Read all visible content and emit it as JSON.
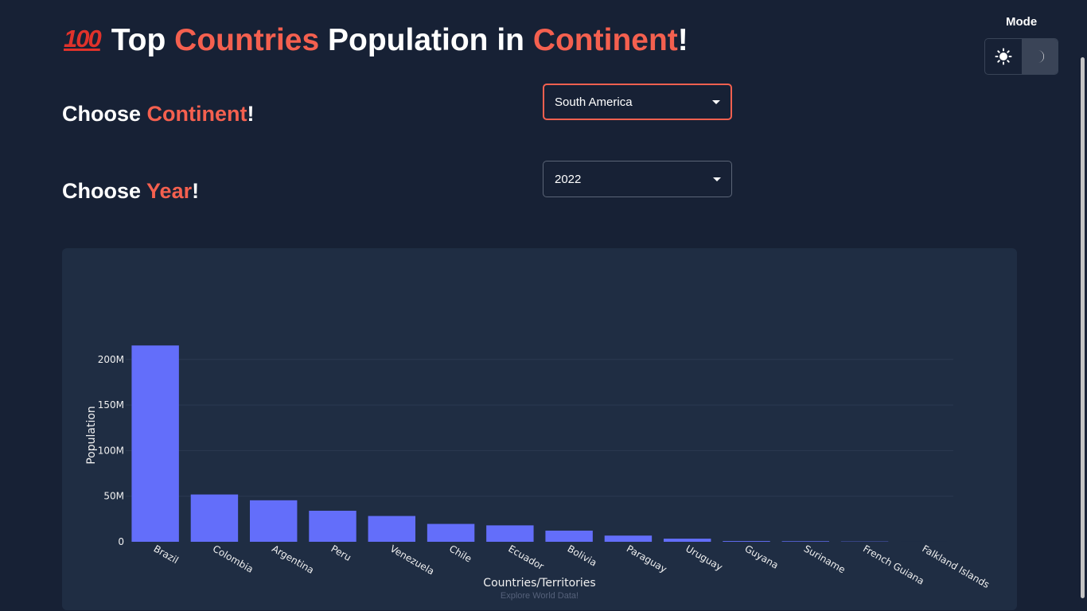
{
  "header": {
    "emoji": "100",
    "title_parts": [
      "Top ",
      "Countries",
      " Population in ",
      "Continent",
      "!"
    ]
  },
  "controls": {
    "continent_label_parts": [
      "Choose ",
      "Continent",
      "!"
    ],
    "year_label_parts": [
      "Choose ",
      "Year",
      "!"
    ],
    "continent_value": "South America",
    "year_value": "2022"
  },
  "mode": {
    "label": "Mode",
    "options": [
      "sun-icon",
      "moon-icon"
    ],
    "active": "moon-icon"
  },
  "colors": {
    "accent": "#f4604f",
    "bar": "#636efa",
    "background": "#172135",
    "card": "#1f2d43"
  },
  "chart_data": {
    "type": "bar",
    "categories": [
      "Brazil",
      "Colombia",
      "Argentina",
      "Peru",
      "Venezuela",
      "Chile",
      "Ecuador",
      "Bolivia",
      "Paraguay",
      "Uruguay",
      "Guyana",
      "Suriname",
      "French Guiana",
      "Falkland Islands"
    ],
    "values": [
      215313498,
      51874024,
      45510318,
      34049588,
      28301696,
      19603733,
      18001000,
      12224110,
      6780744,
      3422794,
      808726,
      618040,
      304557,
      3780
    ],
    "xlabel": "Countries/Territories",
    "ylabel": "Population",
    "yticks": [
      0,
      50000000,
      100000000,
      150000000,
      200000000
    ],
    "ytick_labels": [
      "0",
      "50M",
      "100M",
      "150M",
      "200M"
    ],
    "ylim": [
      0,
      226000000
    ],
    "grid": true,
    "footer": "Explore World Data!"
  }
}
